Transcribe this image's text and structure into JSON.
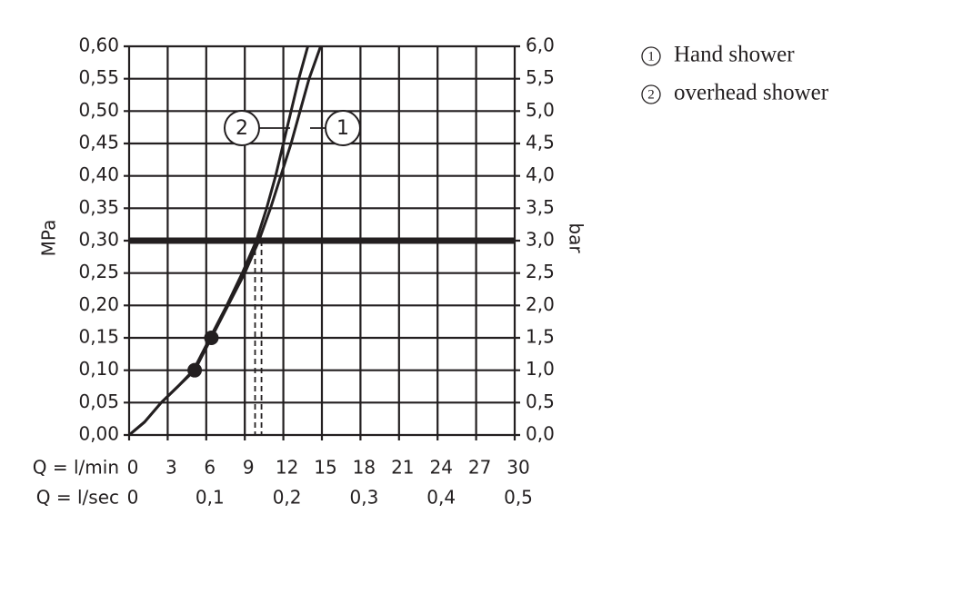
{
  "chart_data": {
    "type": "line",
    "y_label": "MPa",
    "y2_label": "bar",
    "x_row_label": "Q = l/min",
    "x2_row_label": "Q = l/sec",
    "xlim": [
      0,
      30
    ],
    "xticks": [
      0,
      3,
      6,
      9,
      12,
      15,
      18,
      21,
      24,
      27,
      30
    ],
    "x2lim": [
      0,
      0.5
    ],
    "x2ticks": [
      {
        "value": 0,
        "label": "0"
      },
      {
        "value": 0.1,
        "label": "0,1"
      },
      {
        "value": 0.2,
        "label": "0,2"
      },
      {
        "value": 0.3,
        "label": "0,3"
      },
      {
        "value": 0.4,
        "label": "0,4"
      },
      {
        "value": 0.5,
        "label": "0,5"
      }
    ],
    "ylim": [
      0,
      0.6
    ],
    "yticks": [
      {
        "value": 0,
        "label": "0,00"
      },
      {
        "value": 0.05,
        "label": "0,05"
      },
      {
        "value": 0.1,
        "label": "0,10"
      },
      {
        "value": 0.15,
        "label": "0,15"
      },
      {
        "value": 0.2,
        "label": "0,20"
      },
      {
        "value": 0.25,
        "label": "0,25"
      },
      {
        "value": 0.3,
        "label": "0,30"
      },
      {
        "value": 0.35,
        "label": "0,35"
      },
      {
        "value": 0.4,
        "label": "0,40"
      },
      {
        "value": 0.45,
        "label": "0,45"
      },
      {
        "value": 0.5,
        "label": "0,50"
      },
      {
        "value": 0.55,
        "label": "0,55"
      },
      {
        "value": 0.6,
        "label": "0,60"
      }
    ],
    "y2lim": [
      0,
      6
    ],
    "y2ticks": [
      {
        "value": 0,
        "label": "0,0"
      },
      {
        "value": 0.5,
        "label": "0,5"
      },
      {
        "value": 1,
        "label": "1,0"
      },
      {
        "value": 1.5,
        "label": "1,5"
      },
      {
        "value": 2,
        "label": "2,0"
      },
      {
        "value": 2.5,
        "label": "2,5"
      },
      {
        "value": 3,
        "label": "3,0"
      },
      {
        "value": 3.5,
        "label": "3,5"
      },
      {
        "value": 4,
        "label": "4,0"
      },
      {
        "value": 4.5,
        "label": "4,5"
      },
      {
        "value": 5,
        "label": "5,0"
      },
      {
        "value": 5.5,
        "label": "5,5"
      },
      {
        "value": 6,
        "label": "6,0"
      }
    ],
    "grid": true,
    "reference_y": 0.3,
    "reference_x": [
      9,
      9.8,
      10.3
    ],
    "highlight_points": [
      {
        "x": 5.1,
        "y": 0.1
      },
      {
        "x": 6.4,
        "y": 0.15
      }
    ],
    "series": [
      {
        "name": "Hand shower",
        "marker_label": "1",
        "color": "#231f20",
        "x": [
          0,
          1.2,
          2.5,
          3.8,
          5.1,
          6.4,
          7.7,
          9,
          10.1,
          11,
          11.8,
          12.6,
          13.3,
          14,
          14.9
        ],
        "values": [
          0,
          0.02,
          0.05,
          0.075,
          0.1,
          0.15,
          0.2,
          0.25,
          0.3,
          0.35,
          0.4,
          0.45,
          0.5,
          0.55,
          0.6
        ]
      },
      {
        "name": "overhead shower",
        "marker_label": "2",
        "color": "#231f20",
        "x": [
          0,
          1.2,
          2.5,
          3.8,
          5,
          6.3,
          7.6,
          8.8,
          9.9,
          10.7,
          11.4,
          12,
          12.6,
          13.2,
          13.9
        ],
        "values": [
          0,
          0.02,
          0.05,
          0.075,
          0.1,
          0.15,
          0.2,
          0.25,
          0.3,
          0.35,
          0.4,
          0.45,
          0.5,
          0.55,
          0.6
        ]
      }
    ]
  }
}
